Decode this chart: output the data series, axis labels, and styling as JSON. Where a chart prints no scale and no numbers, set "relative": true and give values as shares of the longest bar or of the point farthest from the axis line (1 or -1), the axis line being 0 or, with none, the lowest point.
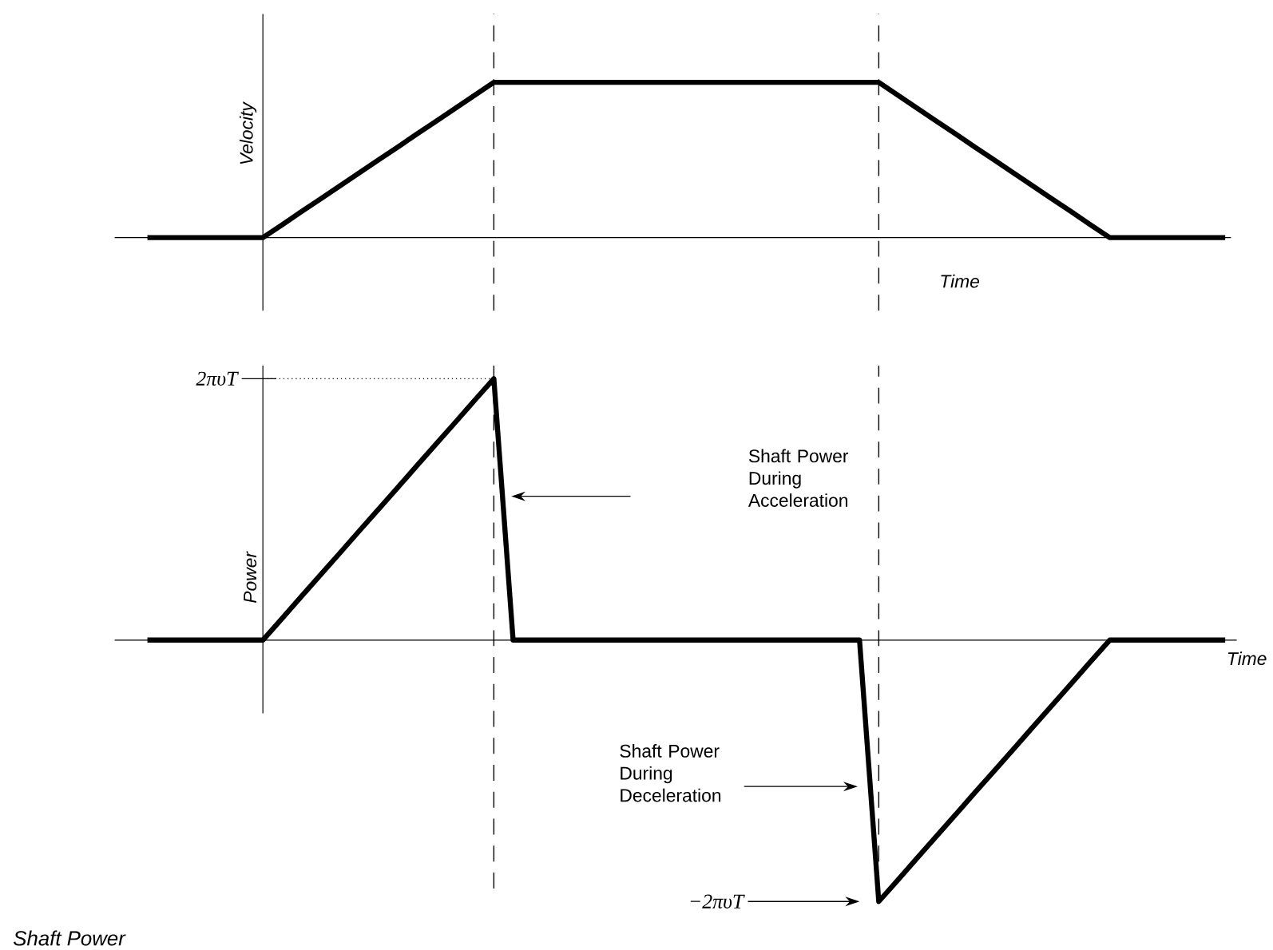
{
  "chart_data": [
    {
      "type": "line",
      "relative": true,
      "color": "#000000",
      "ylabel": "Velocity",
      "xlabel": "Time",
      "categories": [
        null,
        null,
        null,
        null,
        null,
        null,
        null,
        null,
        null,
        null,
        null,
        null,
        null,
        null,
        null,
        null,
        null,
        null,
        null,
        null,
        null,
        null,
        null,
        null,
        null,
        null,
        null,
        null,
        null,
        null,
        null,
        null,
        null,
        null,
        null,
        null,
        null,
        null,
        null,
        null,
        null,
        null,
        null,
        null,
        null,
        null,
        null,
        null,
        null,
        null,
        null,
        null,
        null,
        null,
        null,
        null,
        null
      ],
      "values": [
        0,
        0,
        0,
        0,
        0,
        0,
        0,
        0.083,
        0.167,
        0.25,
        0.333,
        0.417,
        0.5,
        0.583,
        0.667,
        0.75,
        0.833,
        0.917,
        1,
        1,
        1,
        1,
        1,
        1,
        1,
        1,
        1,
        1,
        1,
        1,
        1,
        1,
        1,
        1,
        1,
        1,
        1,
        1,
        1,
        0.917,
        0.833,
        0.75,
        0.667,
        0.583,
        0.5,
        0.417,
        0.333,
        0.25,
        0.167,
        0.083,
        0,
        0,
        0,
        0,
        0,
        0,
        0
      ]
    },
    {
      "type": "line",
      "relative": true,
      "color": "#000000",
      "ylabel": "Power",
      "xlabel": "Time",
      "categories": [
        null,
        null,
        null,
        null,
        null,
        null,
        null,
        null,
        null,
        null,
        null,
        null,
        null,
        null,
        null,
        null,
        null,
        null,
        null,
        null,
        null,
        null,
        null,
        null,
        null,
        null,
        null,
        null,
        null,
        null,
        null,
        null,
        null,
        null,
        null,
        null,
        null,
        null,
        null,
        null,
        null,
        null,
        null,
        null,
        null,
        null,
        null,
        null,
        null,
        null,
        null,
        null,
        null,
        null,
        null,
        null,
        null
      ],
      "values": [
        0,
        0,
        0,
        0,
        0,
        0,
        0,
        0.083,
        0.167,
        0.25,
        0.333,
        0.417,
        0.5,
        0.583,
        0.667,
        0.75,
        0.833,
        0.917,
        1,
        0,
        0,
        0,
        0,
        0,
        0,
        0,
        0,
        0,
        0,
        0,
        0,
        0,
        0,
        0,
        0,
        0,
        0,
        0,
        -1,
        -0.917,
        -0.833,
        -0.75,
        -0.667,
        -0.583,
        -0.5,
        -0.417,
        -0.333,
        -0.25,
        -0.167,
        -0.083,
        0,
        0,
        0,
        0,
        0,
        0,
        0
      ],
      "ref_lines": [
        {
          "axis": "y",
          "value": 1,
          "line_style": "dotted"
        }
      ],
      "annotations": [
        "Shaft Power During Acceleration",
        "Shaft Power During Deceleration",
        "−2πυT",
        "2πυT",
        "Shaft Power"
      ]
    }
  ]
}
